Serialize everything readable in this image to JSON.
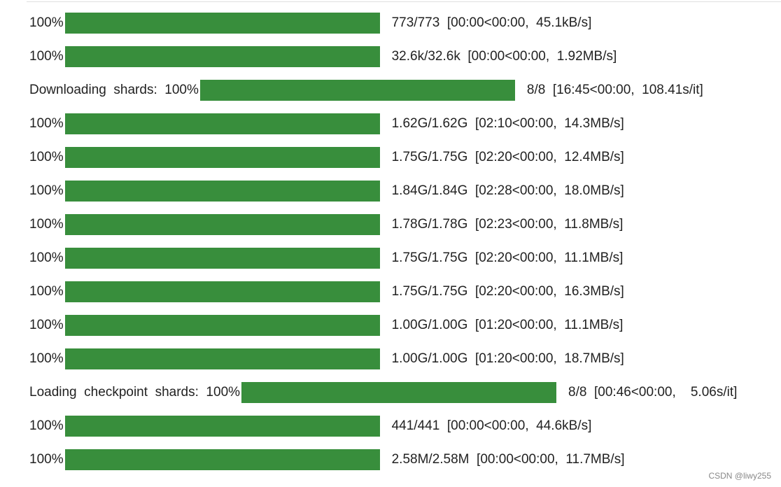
{
  "rows": [
    {
      "prefix": "100%",
      "status": "773/773  [00:00<00:00,  45.1kB/s]"
    },
    {
      "prefix": "100%",
      "status": "32.6k/32.6k  [00:00<00:00,  1.92MB/s]"
    },
    {
      "prefix": "Downloading  shards:  100%",
      "status": "8/8  [16:45<00:00,  108.41s/it]"
    },
    {
      "prefix": "100%",
      "status": "1.62G/1.62G  [02:10<00:00,  14.3MB/s]"
    },
    {
      "prefix": "100%",
      "status": "1.75G/1.75G  [02:20<00:00,  12.4MB/s]"
    },
    {
      "prefix": "100%",
      "status": "1.84G/1.84G  [02:28<00:00,  18.0MB/s]"
    },
    {
      "prefix": "100%",
      "status": "1.78G/1.78G  [02:23<00:00,  11.8MB/s]"
    },
    {
      "prefix": "100%",
      "status": "1.75G/1.75G  [02:20<00:00,  11.1MB/s]"
    },
    {
      "prefix": "100%",
      "status": "1.75G/1.75G  [02:20<00:00,  16.3MB/s]"
    },
    {
      "prefix": "100%",
      "status": "1.00G/1.00G  [01:20<00:00,  11.1MB/s]"
    },
    {
      "prefix": "100%",
      "status": "1.00G/1.00G  [01:20<00:00,  18.7MB/s]"
    },
    {
      "prefix": "Loading  checkpoint  shards:  100%",
      "status": "8/8  [00:46<00:00,    5.06s/it]"
    },
    {
      "prefix": "100%",
      "status": "441/441  [00:00<00:00,  44.6kB/s]"
    },
    {
      "prefix": "100%",
      "status": "2.58M/2.58M  [00:00<00:00,  11.7MB/s]"
    }
  ],
  "watermark": "CSDN @liwy255"
}
